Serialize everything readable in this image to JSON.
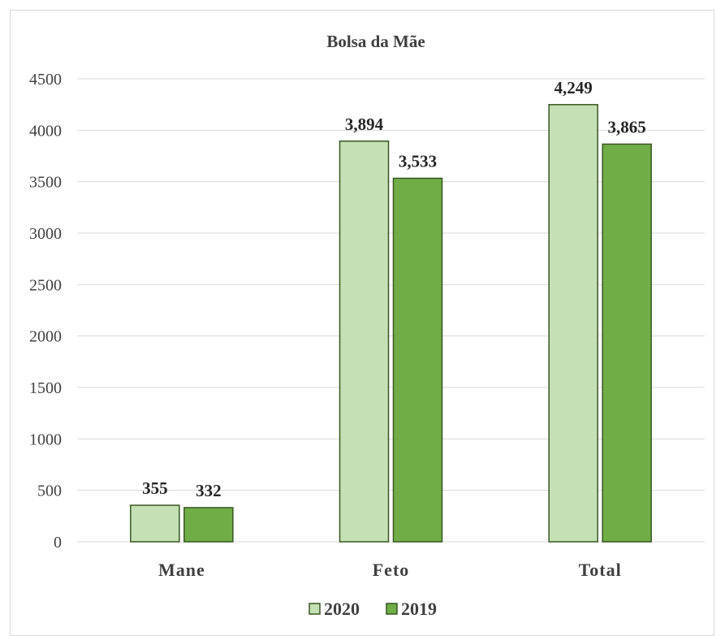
{
  "chart_data": {
    "type": "bar",
    "title": "Bolsa da  Mãe",
    "categories": [
      "Mane",
      "Feto",
      "Total"
    ],
    "series": [
      {
        "name": "2020",
        "values": [
          355,
          3894,
          4249
        ],
        "labels": [
          "355",
          "3,894",
          "4,249"
        ],
        "color": "#c5e0b4",
        "stroke": "#385723"
      },
      {
        "name": "2019",
        "values": [
          332,
          3533,
          3865
        ],
        "labels": [
          "332",
          "3,533",
          "3,865"
        ],
        "color": "#70ad47",
        "stroke": "#385723"
      }
    ],
    "ylim": [
      0,
      4500
    ],
    "yticks": [
      "0",
      "500",
      "1000",
      "1500",
      "2000",
      "2500",
      "3000",
      "3500",
      "4000",
      "4500"
    ],
    "grid": true,
    "legend_position": "bottom"
  }
}
